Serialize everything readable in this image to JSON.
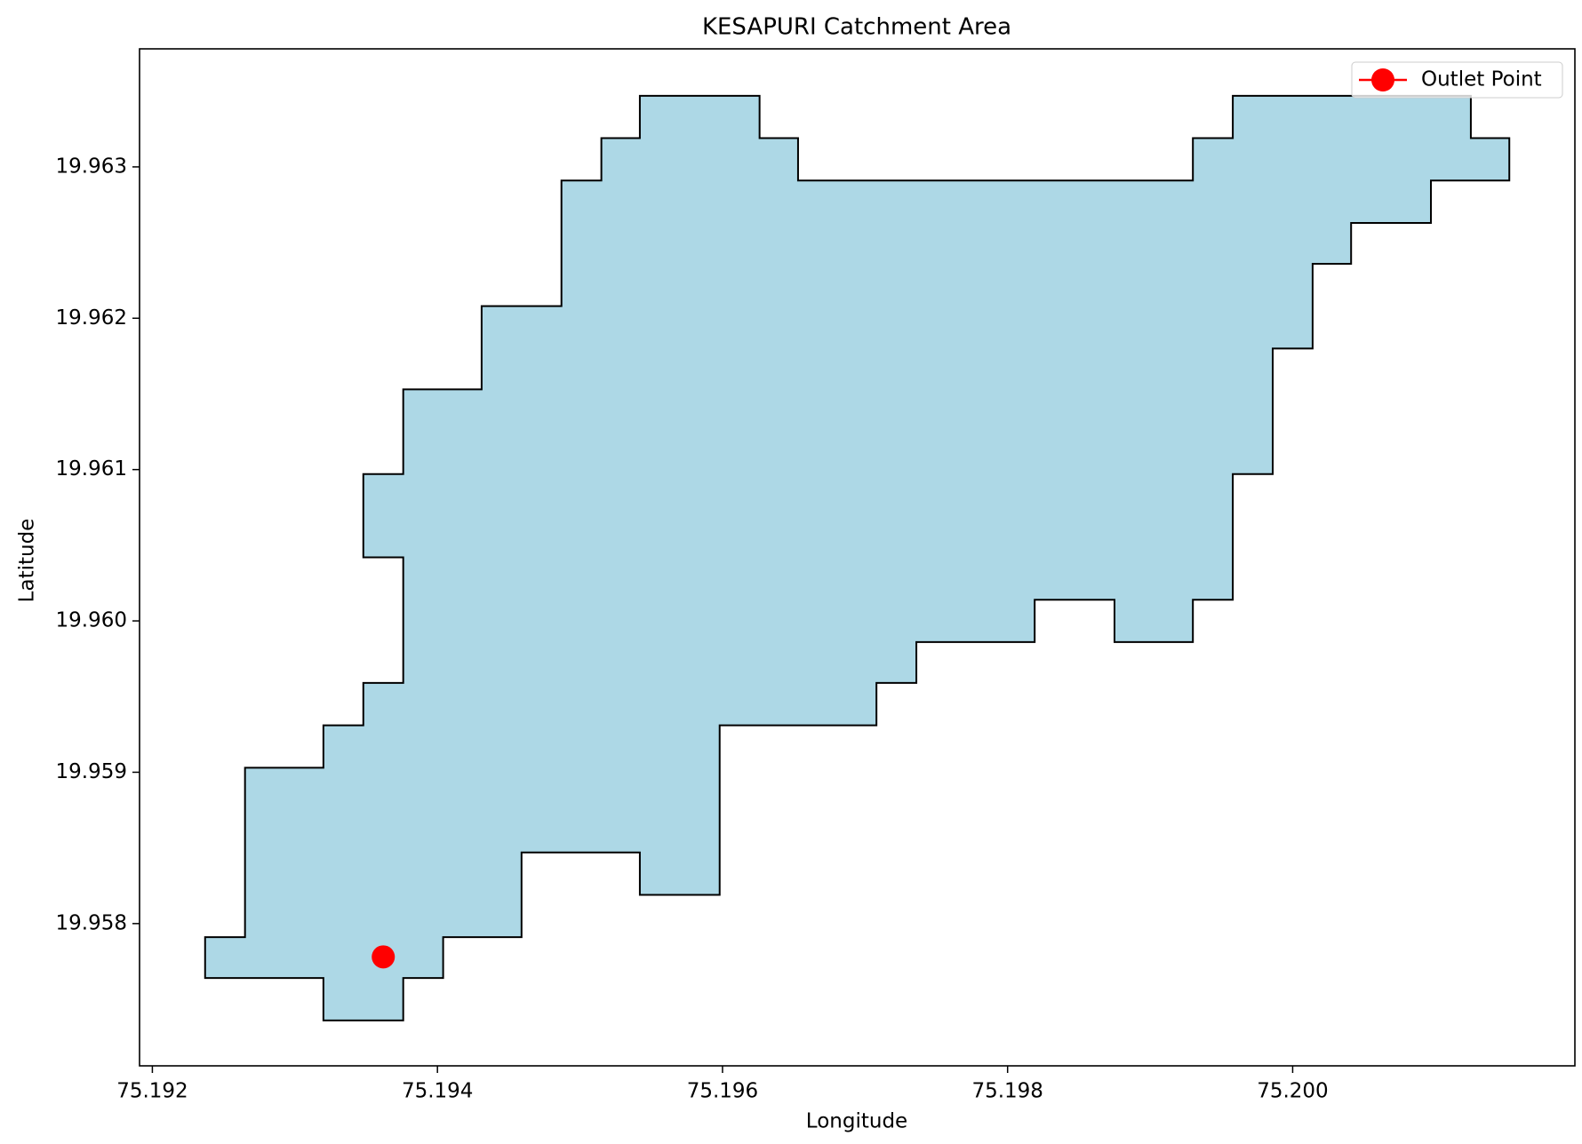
{
  "chart_data": {
    "type": "polygon",
    "title": "KESAPURI Catchment Area",
    "x_label": "Longitude",
    "y_label": "Latitude",
    "xlim": [
      75.19191,
      75.20198
    ],
    "ylim": [
      19.95706,
      19.96378
    ],
    "xticks": [
      75.192,
      75.194,
      75.196,
      75.198,
      {
        "value": 75.2,
        "label": "75.200"
      }
    ],
    "yticks": [
      {
        "value": 19.958,
        "label": "19.958"
      },
      {
        "value": 19.959,
        "label": "19.959"
      },
      {
        "value": 19.96,
        "label": "19.960"
      },
      {
        "value": 19.961,
        "label": "19.961"
      },
      {
        "value": 19.962,
        "label": "19.962"
      },
      {
        "value": 19.963,
        "label": "19.963"
      }
    ],
    "polygon": {
      "color": "#add8e6",
      "edge_color": "#000000",
      "x": [
        75.19542,
        75.19626,
        75.19626,
        75.19653,
        75.19653,
        75.1993,
        75.1993,
        75.19958,
        75.19958,
        75.20125,
        75.20125,
        75.20152,
        75.20152,
        75.20097,
        75.20097,
        75.20041,
        75.20041,
        75.20014,
        75.20014,
        75.19986,
        75.19986,
        75.19958,
        75.19958,
        75.1993,
        75.1993,
        75.19875,
        75.19875,
        75.19819,
        75.19819,
        75.19736,
        75.19736,
        75.19708,
        75.19708,
        75.19598,
        75.19598,
        75.19542,
        75.19542,
        75.19459,
        75.19459,
        75.19404,
        75.19404,
        75.19376,
        75.19376,
        75.1932,
        75.1932,
        75.19237,
        75.19237,
        75.19265,
        75.19265,
        75.1932,
        75.1932,
        75.19348,
        75.19348,
        75.19376,
        75.19376,
        75.19348,
        75.19348,
        75.19376,
        75.19376,
        75.19431,
        75.19431,
        75.19487,
        75.19487,
        75.19515,
        75.19515,
        75.19542
      ],
      "y": [
        19.96347,
        19.96347,
        19.96319,
        19.96319,
        19.96291,
        19.96291,
        19.96319,
        19.96319,
        19.96347,
        19.96347,
        19.96319,
        19.96319,
        19.96291,
        19.96291,
        19.96263,
        19.96263,
        19.96236,
        19.96236,
        19.9618,
        19.9618,
        19.96097,
        19.96097,
        19.96014,
        19.96014,
        19.95986,
        19.95986,
        19.96014,
        19.96014,
        19.95986,
        19.95986,
        19.95959,
        19.95959,
        19.95931,
        19.95931,
        19.95819,
        19.95819,
        19.95847,
        19.95847,
        19.95791,
        19.95791,
        19.95764,
        19.95764,
        19.95736,
        19.95736,
        19.95764,
        19.95764,
        19.95791,
        19.95791,
        19.95903,
        19.95903,
        19.95931,
        19.95931,
        19.95959,
        19.95959,
        19.96042,
        19.96042,
        19.96097,
        19.96097,
        19.96153,
        19.96153,
        19.96208,
        19.96208,
        19.96291,
        19.96291,
        19.96319,
        19.96319
      ]
    },
    "series": [
      {
        "name": "Outlet Point",
        "color": "#ff0000",
        "x": [
          75.19362
        ],
        "y": [
          19.95778
        ]
      }
    ],
    "legend": "upper right"
  }
}
